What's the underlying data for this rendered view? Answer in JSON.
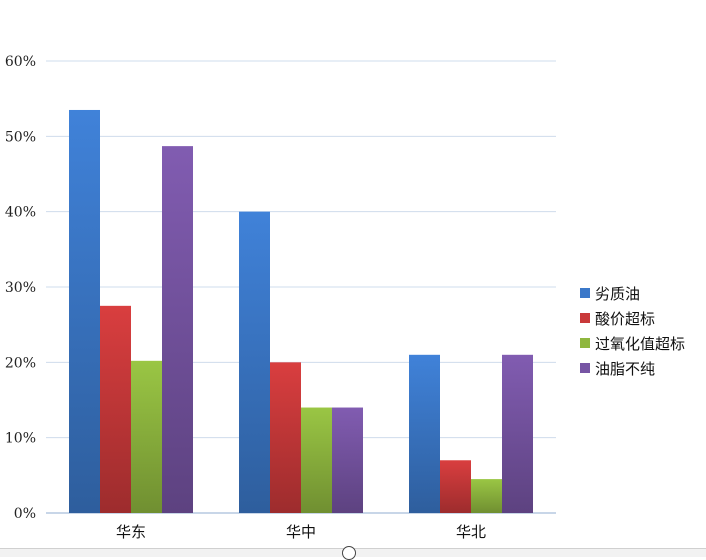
{
  "chart_data": {
    "type": "bar",
    "title": "",
    "xlabel": "",
    "ylabel": "",
    "categories": [
      "华东",
      "华中",
      "华北"
    ],
    "series": [
      {
        "name": "劣质油",
        "values": [
          53.5,
          40,
          21
        ],
        "color": "#3b78c9"
      },
      {
        "name": "酸价超标",
        "values": [
          27.5,
          20,
          7
        ],
        "color": "#c9393a"
      },
      {
        "name": "过氧化值超标",
        "values": [
          20.2,
          14,
          4.5
        ],
        "color": "#8fb73f"
      },
      {
        "name": "油脂不纯",
        "values": [
          48.7,
          14,
          21
        ],
        "color": "#7755a4"
      }
    ],
    "ylim": [
      0,
      60
    ],
    "yticks": [
      "0%",
      "10%",
      "20%",
      "30%",
      "40%",
      "50%",
      "60%"
    ],
    "grid": true,
    "legend_position": "right"
  }
}
